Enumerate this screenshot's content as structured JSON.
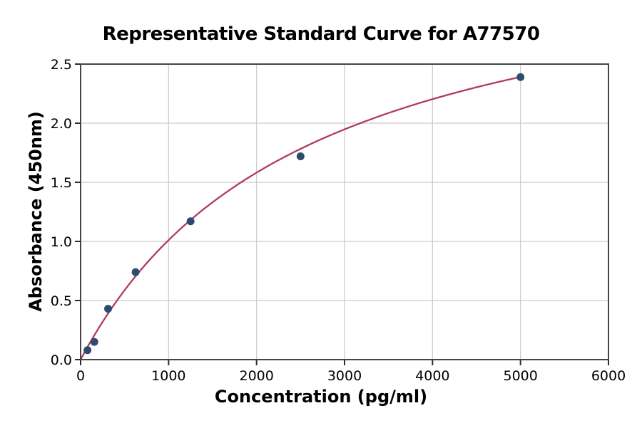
{
  "chart_data": {
    "type": "scatter",
    "title": "Representative Standard Curve for A77570",
    "xlabel": "Concentration (pg/ml)",
    "ylabel": "Absorbance (450nm)",
    "xlim": [
      0,
      6000
    ],
    "ylim": [
      0,
      2.5
    ],
    "x_ticks": [
      0,
      1000,
      2000,
      3000,
      4000,
      5000,
      6000
    ],
    "x_tick_labels": [
      "0",
      "1000",
      "2000",
      "3000",
      "4000",
      "5000",
      "6000"
    ],
    "y_ticks": [
      0.0,
      0.5,
      1.0,
      1.5,
      2.0,
      2.5
    ],
    "y_tick_labels": [
      "0.0",
      "0.5",
      "1.0",
      "1.5",
      "2.0",
      "2.5"
    ],
    "grid": true,
    "legend": "none",
    "series": [
      {
        "name": "standards",
        "kind": "scatter",
        "x": [
          78.1,
          156.3,
          312.5,
          625,
          1250,
          2500,
          5000
        ],
        "y": [
          0.08,
          0.15,
          0.43,
          0.74,
          1.17,
          1.72,
          2.39
        ]
      },
      {
        "name": "fit-curve",
        "kind": "line",
        "model": "saturation y = vmax*x/(k+x)",
        "vmax": 3.63,
        "k": 2590,
        "x_start": 0,
        "x_end": 5000
      }
    ],
    "colors": {
      "curve": "#b13a60",
      "points": "#2e4a6e",
      "grid": "#cacaca",
      "frame": "#444444",
      "tick": "#2b2b2b",
      "text": "#000000",
      "background": "#ffffff"
    }
  }
}
